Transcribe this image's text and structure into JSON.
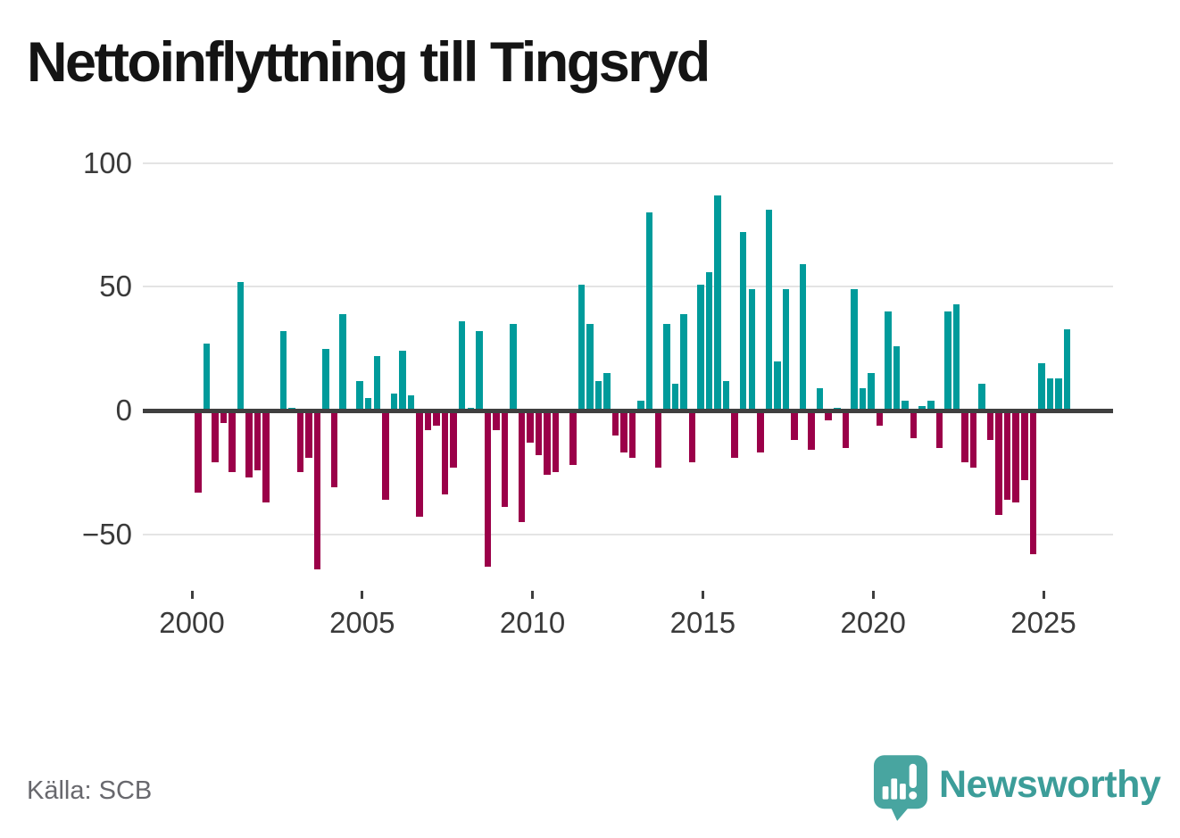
{
  "title": "Nettoinflyttning till Tingsryd",
  "source": "Källa: SCB",
  "branding": {
    "wordmark": "Newsworthy",
    "icon": "speech-bubble-bar-chart-icon"
  },
  "colors": {
    "positive_bar": "#009b9b",
    "negative_bar": "#9b0049",
    "zero_axis": "#3f3f3f",
    "gridline": "#e4e4e4",
    "axis_text": "#3a3a3a",
    "title_text": "#141414",
    "source_text": "#68686d",
    "brand_teal": "#3c9d99",
    "brand_icon_fill": "#48a5a0"
  },
  "y_axis": {
    "ticks": [
      100,
      50,
      0,
      -50
    ],
    "labels": [
      "100",
      "50",
      "0",
      "−50"
    ]
  },
  "x_axis": {
    "tick_labels": [
      "2000",
      "2005",
      "2010",
      "2015",
      "2020",
      "2025"
    ]
  },
  "chart_data": {
    "type": "bar",
    "title": "Nettoinflyttning till Tingsryd",
    "xlabel": "",
    "ylabel": "",
    "ylim": [
      -72,
      105
    ],
    "grid": true,
    "legend": "none",
    "frequency": "quarterly",
    "x": [
      "2000-Q1",
      "2000-Q2",
      "2000-Q3",
      "2000-Q4",
      "2001-Q1",
      "2001-Q2",
      "2001-Q3",
      "2001-Q4",
      "2002-Q1",
      "2002-Q2",
      "2002-Q3",
      "2002-Q4",
      "2003-Q1",
      "2003-Q2",
      "2003-Q3",
      "2003-Q4",
      "2004-Q1",
      "2004-Q2",
      "2004-Q3",
      "2004-Q4",
      "2005-Q1",
      "2005-Q2",
      "2005-Q3",
      "2005-Q4",
      "2006-Q1",
      "2006-Q2",
      "2006-Q3",
      "2006-Q4",
      "2007-Q1",
      "2007-Q2",
      "2007-Q3",
      "2007-Q4",
      "2008-Q1",
      "2008-Q2",
      "2008-Q3",
      "2008-Q4",
      "2009-Q1",
      "2009-Q2",
      "2009-Q3",
      "2009-Q4",
      "2010-Q1",
      "2010-Q2",
      "2010-Q3",
      "2010-Q4",
      "2011-Q1",
      "2011-Q2",
      "2011-Q3",
      "2011-Q4",
      "2012-Q1",
      "2012-Q2",
      "2012-Q3",
      "2012-Q4",
      "2013-Q1",
      "2013-Q2",
      "2013-Q3",
      "2013-Q4",
      "2014-Q1",
      "2014-Q2",
      "2014-Q3",
      "2014-Q4",
      "2015-Q1",
      "2015-Q2",
      "2015-Q3",
      "2015-Q4",
      "2016-Q1",
      "2016-Q2",
      "2016-Q3",
      "2016-Q4",
      "2017-Q1",
      "2017-Q2",
      "2017-Q3",
      "2017-Q4",
      "2018-Q1",
      "2018-Q2",
      "2018-Q3",
      "2018-Q4",
      "2019-Q1",
      "2019-Q2",
      "2019-Q3",
      "2019-Q4",
      "2020-Q1",
      "2020-Q2",
      "2020-Q3",
      "2020-Q4",
      "2021-Q1",
      "2021-Q2",
      "2021-Q3",
      "2021-Q4",
      "2022-Q1",
      "2022-Q2",
      "2022-Q3",
      "2022-Q4",
      "2023-Q1",
      "2023-Q2",
      "2023-Q3",
      "2023-Q4",
      "2024-Q1",
      "2024-Q2",
      "2024-Q3",
      "2024-Q4",
      "2025-Q1",
      "2025-Q2",
      "2025-Q3"
    ],
    "values": [
      -33,
      27,
      -21,
      -5,
      -25,
      52,
      -27,
      -24,
      -37,
      0,
      32,
      1,
      -25,
      -19,
      -64,
      25,
      -31,
      39,
      0,
      12,
      5,
      22,
      -36,
      7,
      24,
      6,
      -43,
      -8,
      -6,
      -34,
      -23,
      36,
      1,
      32,
      -63,
      -8,
      -39,
      35,
      -45,
      -13,
      -18,
      -26,
      -25,
      0,
      -22,
      51,
      35,
      12,
      15,
      -10,
      -17,
      -19,
      4,
      80,
      -23,
      35,
      11,
      39,
      -21,
      51,
      56,
      87,
      12,
      -19,
      72,
      49,
      -17,
      81,
      20,
      49,
      -12,
      59,
      -16,
      9,
      -4,
      1,
      -15,
      49,
      9,
      15,
      -6,
      40,
      26,
      4,
      -11,
      2,
      4,
      -15,
      40,
      43,
      -21,
      -23,
      11,
      -12,
      -42,
      -36,
      -37,
      -28,
      -58,
      19,
      13,
      13,
      33
    ]
  }
}
